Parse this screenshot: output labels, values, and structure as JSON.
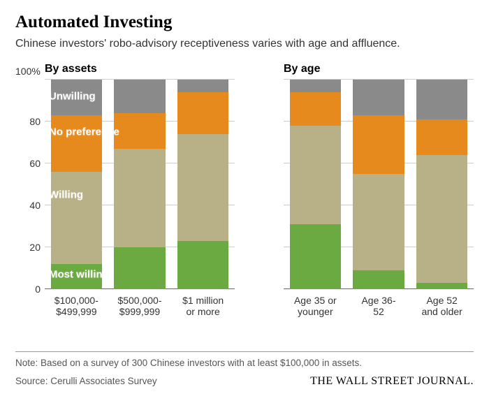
{
  "title": "Automated Investing",
  "subtitle": "Chinese investors' robo-advisory receptiveness varies with age and affluence.",
  "y_axis": {
    "pct_label": "100%",
    "ticks": [
      0,
      20,
      40,
      60,
      80
    ],
    "max": 100
  },
  "grid_color": "#cccccc",
  "axis_zero_color": "#666666",
  "series": [
    {
      "key": "most_willing",
      "label": "Most willing",
      "color": "#6aaa41",
      "label_color": "#ffffff"
    },
    {
      "key": "willing",
      "label": "Willing",
      "color": "#b8b086",
      "label_color": "#ffffff"
    },
    {
      "key": "no_preference",
      "label": "No preference",
      "color": "#e68a1e",
      "label_color": "#ffffff"
    },
    {
      "key": "unwilling",
      "label": "Unwilling",
      "color": "#8a8a8a",
      "label_color": "#ffffff"
    }
  ],
  "panels": [
    {
      "title": "By assets",
      "show_y_labels": true,
      "show_legend_overlay": true,
      "categories": [
        {
          "label_line1": "$100,000-",
          "label_line2": "$499,999",
          "values": {
            "most_willing": 12,
            "willing": 44,
            "no_preference": 27,
            "unwilling": 17
          }
        },
        {
          "label_line1": "$500,000-",
          "label_line2": "$999,999",
          "values": {
            "most_willing": 20,
            "willing": 47,
            "no_preference": 17,
            "unwilling": 16
          }
        },
        {
          "label_line1": "$1 million",
          "label_line2": "or more",
          "values": {
            "most_willing": 23,
            "willing": 51,
            "no_preference": 20,
            "unwilling": 6
          }
        }
      ],
      "legend_positions": {
        "unwilling": {
          "top_pct": 8
        },
        "no_preference": {
          "top_pct": 25
        },
        "willing": {
          "top_pct": 55
        },
        "most_willing": {
          "top_pct": 93
        }
      }
    },
    {
      "title": "By age",
      "show_y_labels": false,
      "show_legend_overlay": false,
      "categories": [
        {
          "label_line1": "Age 35 or",
          "label_line2": "younger",
          "values": {
            "most_willing": 31,
            "willing": 47,
            "no_preference": 16,
            "unwilling": 6
          }
        },
        {
          "label_line1": "Age 36-",
          "label_line2": "52",
          "values": {
            "most_willing": 9,
            "willing": 46,
            "no_preference": 28,
            "unwilling": 17
          }
        },
        {
          "label_line1": "Age 52",
          "label_line2": "and older",
          "values": {
            "most_willing": 3,
            "willing": 61,
            "no_preference": 17,
            "unwilling": 19
          }
        }
      ]
    }
  ],
  "note": "Note: Based on a survey of 300 Chinese investors with at least $100,000 in assets.",
  "source": "Source: Cerulli Associates Survey",
  "brand": "THE WALL STREET JOURNAL."
}
